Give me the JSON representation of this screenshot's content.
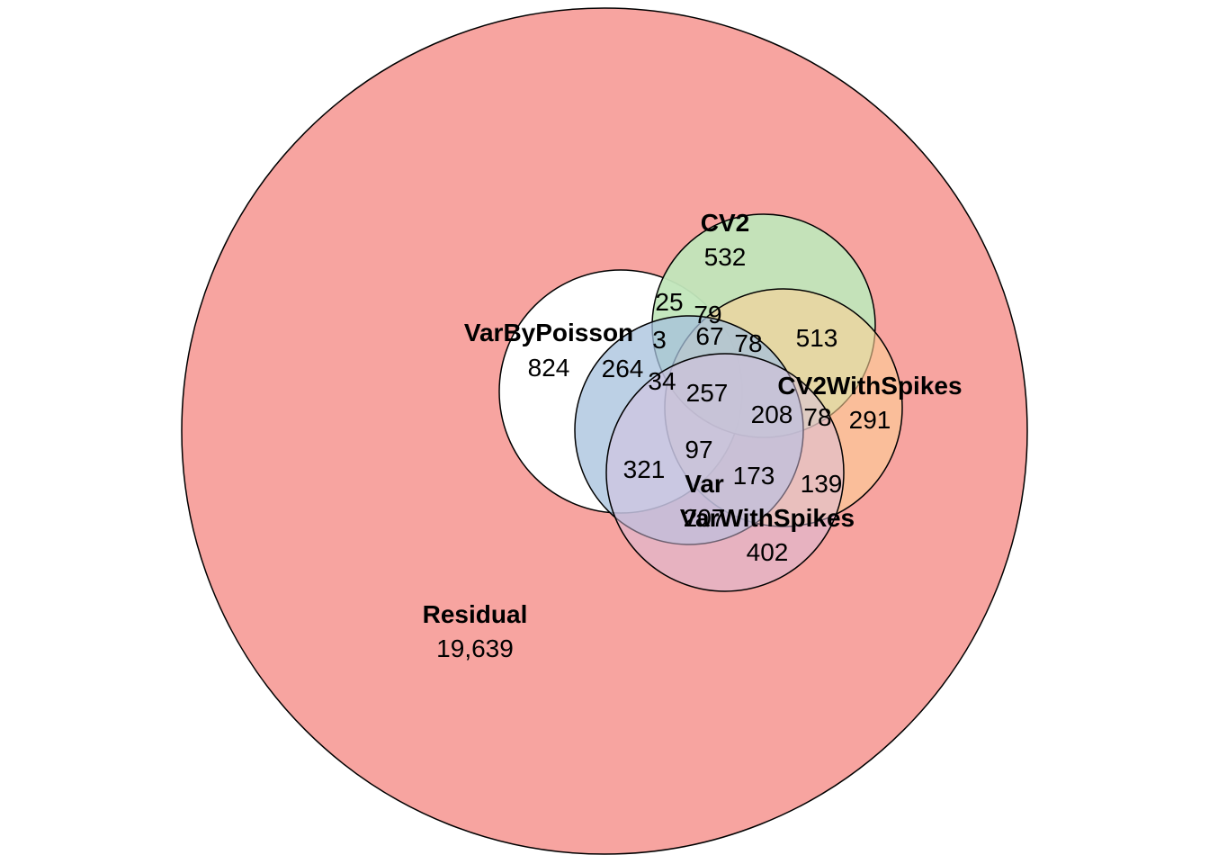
{
  "chart_data": {
    "type": "euler",
    "sets": [
      {
        "key": "residual",
        "name": "Residual",
        "count": "19,639",
        "fill": "#f7a4a0"
      },
      {
        "key": "cv2",
        "name": "CV2",
        "count": "532",
        "fill": "#c1e6bb"
      },
      {
        "key": "varbypoisson",
        "name": "VarByPoisson",
        "count": "824",
        "fill": "#ffffff"
      },
      {
        "key": "cv2withspikes",
        "name": "CV2WithSpikes",
        "count": "291",
        "fill": "#fcd196"
      },
      {
        "key": "var",
        "name": "Var",
        "count": "207",
        "fill": "#a6c0dc"
      },
      {
        "key": "varwithspikes",
        "name": "VarWithSpikes",
        "count": "402",
        "fill": "#d8bfdf"
      }
    ],
    "intersections": [
      {
        "id": "a",
        "value": "25"
      },
      {
        "id": "b",
        "value": "79"
      },
      {
        "id": "c",
        "value": "3"
      },
      {
        "id": "d",
        "value": "67"
      },
      {
        "id": "e",
        "value": "78"
      },
      {
        "id": "f",
        "value": "513"
      },
      {
        "id": "g",
        "value": "264"
      },
      {
        "id": "h",
        "value": "34"
      },
      {
        "id": "i",
        "value": "257"
      },
      {
        "id": "j",
        "value": "208"
      },
      {
        "id": "k",
        "value": "78"
      },
      {
        "id": "l",
        "value": "97"
      },
      {
        "id": "m",
        "value": "321"
      },
      {
        "id": "n",
        "value": "173"
      },
      {
        "id": "o",
        "value": "139"
      }
    ],
    "outline_color": "#000000"
  }
}
